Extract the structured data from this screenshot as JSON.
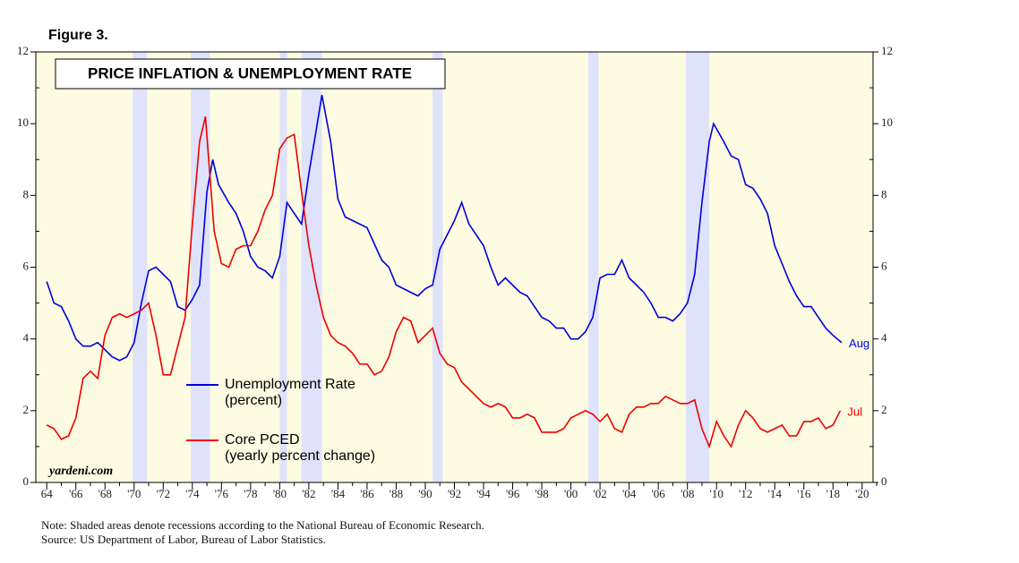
{
  "chart_data": {
    "type": "line",
    "figure_label": "Figure 3.",
    "title": "PRICE INFLATION & UNEMPLOYMENT RATE",
    "watermark": "yardeni.com",
    "notes": [
      "Note: Shaded areas denote recessions according to the National Bureau of Economic Research.",
      "Source: US Department of Labor, Bureau of Labor Statistics."
    ],
    "xlim": [
      1963.25,
      2020.75
    ],
    "ylim": [
      0,
      12
    ],
    "yticks": [
      0,
      2,
      4,
      6,
      8,
      10,
      12
    ],
    "xticks": [
      {
        "value": 1964,
        "label": "64"
      },
      {
        "value": 1966,
        "label": "'66"
      },
      {
        "value": 1968,
        "label": "'68"
      },
      {
        "value": 1970,
        "label": "'70"
      },
      {
        "value": 1972,
        "label": "'72"
      },
      {
        "value": 1974,
        "label": "'74"
      },
      {
        "value": 1976,
        "label": "'76"
      },
      {
        "value": 1978,
        "label": "'78"
      },
      {
        "value": 1980,
        "label": "'80"
      },
      {
        "value": 1982,
        "label": "'82"
      },
      {
        "value": 1984,
        "label": "'84"
      },
      {
        "value": 1986,
        "label": "'86"
      },
      {
        "value": 1988,
        "label": "'88"
      },
      {
        "value": 1990,
        "label": "'90"
      },
      {
        "value": 1992,
        "label": "'92"
      },
      {
        "value": 1994,
        "label": "'94"
      },
      {
        "value": 1996,
        "label": "'96"
      },
      {
        "value": 1998,
        "label": "'98"
      },
      {
        "value": 2000,
        "label": "'00"
      },
      {
        "value": 2002,
        "label": "'02"
      },
      {
        "value": 2004,
        "label": "'04"
      },
      {
        "value": 2006,
        "label": "'06"
      },
      {
        "value": 2008,
        "label": "'08"
      },
      {
        "value": 2010,
        "label": "'10"
      },
      {
        "value": 2012,
        "label": "'12"
      },
      {
        "value": 2014,
        "label": "'14"
      },
      {
        "value": 2016,
        "label": "'16"
      },
      {
        "value": 2018,
        "label": "'18"
      },
      {
        "value": 2020,
        "label": "'20"
      }
    ],
    "recessions": [
      [
        1969.9,
        1970.9
      ],
      [
        1973.9,
        1975.2
      ],
      [
        1980.0,
        1980.5
      ],
      [
        1981.5,
        1982.9
      ],
      [
        1990.5,
        1991.2
      ],
      [
        2001.2,
        2001.9
      ],
      [
        2007.9,
        2009.5
      ]
    ],
    "background_color": "#fdfbe1",
    "recession_color": "#dfe2fb",
    "series": [
      {
        "name": "Unemployment Rate",
        "unit": "(percent)",
        "end_label": "Aug",
        "color": "#0000dd",
        "x": [
          1964,
          1964.5,
          1965,
          1965.5,
          1966,
          1966.5,
          1967,
          1967.5,
          1968,
          1968.5,
          1969,
          1969.5,
          1970,
          1970.5,
          1971,
          1971.5,
          1972,
          1972.5,
          1973,
          1973.5,
          1974,
          1974.5,
          1975,
          1975.4,
          1975.8,
          1976.5,
          1977,
          1977.5,
          1978,
          1978.5,
          1979,
          1979.5,
          1980,
          1980.5,
          1981,
          1981.5,
          1982,
          1982.5,
          1982.9,
          1983.5,
          1984,
          1984.5,
          1985,
          1986,
          1987,
          1987.5,
          1988,
          1988.5,
          1989,
          1989.5,
          1990,
          1990.5,
          1991,
          1991.5,
          1992,
          1992.5,
          1993,
          1993.5,
          1994,
          1994.5,
          1995,
          1995.5,
          1996,
          1996.5,
          1997,
          1997.5,
          1998,
          1998.5,
          1999,
          1999.5,
          2000,
          2000.5,
          2001,
          2001.5,
          2002,
          2002.5,
          2003,
          2003.5,
          2004,
          2004.5,
          2005,
          2005.5,
          2006,
          2006.5,
          2007,
          2007.5,
          2008,
          2008.5,
          2009,
          2009.5,
          2009.8,
          2010.5,
          2011,
          2011.5,
          2012,
          2012.5,
          2013,
          2013.5,
          2014,
          2014.5,
          2015,
          2015.5,
          2016,
          2016.5,
          2017,
          2017.5,
          2018,
          2018.6
        ],
        "values": [
          5.6,
          5.0,
          4.9,
          4.5,
          4.0,
          3.8,
          3.8,
          3.9,
          3.7,
          3.5,
          3.4,
          3.5,
          3.9,
          5.0,
          5.9,
          6.0,
          5.8,
          5.6,
          4.9,
          4.8,
          5.1,
          5.5,
          8.1,
          9.0,
          8.3,
          7.8,
          7.5,
          7.0,
          6.3,
          6.0,
          5.9,
          5.7,
          6.3,
          7.8,
          7.5,
          7.2,
          8.6,
          9.8,
          10.8,
          9.5,
          7.9,
          7.4,
          7.3,
          7.1,
          6.2,
          6.0,
          5.5,
          5.4,
          5.3,
          5.2,
          5.4,
          5.5,
          6.5,
          6.9,
          7.3,
          7.8,
          7.2,
          6.9,
          6.6,
          6.0,
          5.5,
          5.7,
          5.5,
          5.3,
          5.2,
          4.9,
          4.6,
          4.5,
          4.3,
          4.3,
          4.0,
          4.0,
          4.2,
          4.6,
          5.7,
          5.8,
          5.8,
          6.2,
          5.7,
          5.5,
          5.3,
          5.0,
          4.6,
          4.6,
          4.5,
          4.7,
          5.0,
          5.8,
          7.8,
          9.5,
          10.0,
          9.5,
          9.1,
          9.0,
          8.3,
          8.2,
          7.9,
          7.5,
          6.6,
          6.1,
          5.6,
          5.2,
          4.9,
          4.9,
          4.6,
          4.3,
          4.1,
          3.9
        ]
      },
      {
        "name": "Core PCED",
        "unit": "(yearly percent change)",
        "end_label": "Jul",
        "color": "#ee0000",
        "x": [
          1964,
          1964.5,
          1965,
          1965.5,
          1966,
          1966.5,
          1967,
          1967.5,
          1968,
          1968.5,
          1969,
          1969.5,
          1970,
          1970.5,
          1971,
          1971.5,
          1972,
          1972.5,
          1973,
          1973.5,
          1974,
          1974.5,
          1974.9,
          1975.5,
          1976,
          1976.5,
          1977,
          1977.5,
          1978,
          1978.5,
          1979,
          1979.5,
          1980,
          1980.5,
          1981,
          1981.5,
          1982,
          1982.5,
          1983,
          1983.5,
          1984,
          1984.5,
          1985,
          1985.5,
          1986,
          1986.5,
          1987,
          1987.5,
          1988,
          1988.5,
          1989,
          1989.5,
          1990,
          1990.5,
          1991,
          1991.5,
          1992,
          1992.5,
          1993,
          1993.5,
          1994,
          1994.5,
          1995,
          1995.5,
          1996,
          1996.5,
          1997,
          1997.5,
          1998,
          1998.5,
          1999,
          1999.5,
          2000,
          2000.5,
          2001,
          2001.5,
          2002,
          2002.5,
          2003,
          2003.5,
          2004,
          2004.5,
          2005,
          2005.5,
          2006,
          2006.5,
          2007,
          2007.5,
          2008,
          2008.5,
          2009,
          2009.5,
          2010,
          2010.5,
          2011,
          2011.5,
          2012,
          2012.5,
          2013,
          2013.5,
          2014,
          2014.5,
          2015,
          2015.5,
          2016,
          2016.5,
          2017,
          2017.5,
          2018,
          2018.5
        ],
        "values": [
          1.6,
          1.5,
          1.2,
          1.3,
          1.8,
          2.9,
          3.1,
          2.9,
          4.1,
          4.6,
          4.7,
          4.6,
          4.7,
          4.8,
          5.0,
          4.1,
          3.0,
          3.0,
          3.8,
          4.6,
          7.2,
          9.5,
          10.2,
          7.0,
          6.1,
          6.0,
          6.5,
          6.6,
          6.6,
          7.0,
          7.6,
          8.0,
          9.3,
          9.6,
          9.7,
          8.1,
          6.6,
          5.5,
          4.6,
          4.1,
          3.9,
          3.8,
          3.6,
          3.3,
          3.3,
          3.0,
          3.1,
          3.5,
          4.2,
          4.6,
          4.5,
          3.9,
          4.1,
          4.3,
          3.6,
          3.3,
          3.2,
          2.8,
          2.6,
          2.4,
          2.2,
          2.1,
          2.2,
          2.1,
          1.8,
          1.8,
          1.9,
          1.8,
          1.4,
          1.4,
          1.4,
          1.5,
          1.8,
          1.9,
          2.0,
          1.9,
          1.7,
          1.9,
          1.5,
          1.4,
          1.9,
          2.1,
          2.1,
          2.2,
          2.2,
          2.4,
          2.3,
          2.2,
          2.2,
          2.3,
          1.5,
          1.0,
          1.7,
          1.3,
          1.0,
          1.6,
          2.0,
          1.8,
          1.5,
          1.4,
          1.5,
          1.6,
          1.3,
          1.3,
          1.7,
          1.7,
          1.8,
          1.5,
          1.6,
          2.0
        ]
      }
    ]
  }
}
